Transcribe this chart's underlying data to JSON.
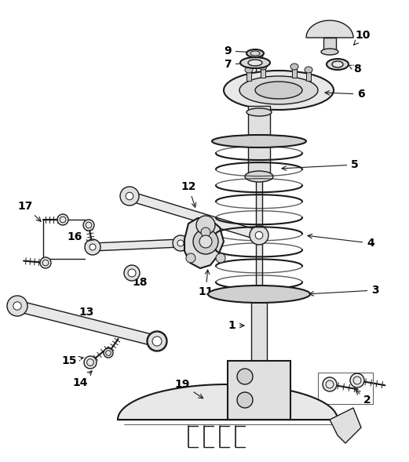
{
  "bg_color": "#ffffff",
  "line_color": "#1a1a1a",
  "figsize": [
    5.21,
    5.89
  ],
  "dpi": 100,
  "label_fontsize": 10,
  "label_fontweight": "bold"
}
